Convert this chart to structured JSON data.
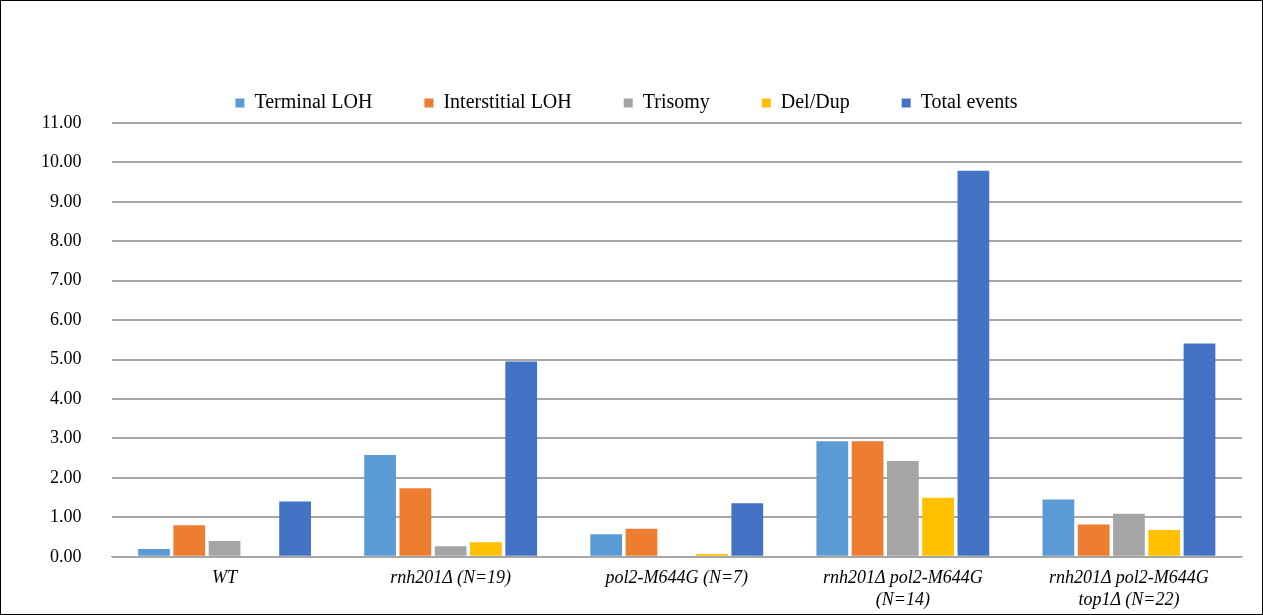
{
  "chart_data": {
    "type": "bar",
    "categories": [
      "WT",
      "rnh201Δ (N=19)",
      "pol2-M644G (N=7)",
      "rnh201Δ pol2-M644G (N=14)",
      "rnh201Δ pol2-M644G top1Δ (N=22)"
    ],
    "series": [
      {
        "name": "Terminal LOH",
        "color": "#5b9bd5",
        "values": [
          0.2,
          2.58,
          0.57,
          2.93,
          1.45
        ]
      },
      {
        "name": "Interstitial LOH",
        "color": "#ed7d31",
        "values": [
          0.8,
          1.74,
          0.71,
          2.93,
          0.82
        ]
      },
      {
        "name": "Trisomy",
        "color": "#a5a5a5",
        "values": [
          0.4,
          0.27,
          0,
          2.43,
          1.09
        ]
      },
      {
        "name": "Del/Dup",
        "color": "#ffc000",
        "values": [
          0,
          0.37,
          0.07,
          1.5,
          0.68
        ]
      },
      {
        "name": "Total events",
        "color": "#4472c4",
        "values": [
          1.4,
          4.95,
          1.36,
          9.79,
          5.41
        ]
      }
    ],
    "ylim": [
      0,
      11
    ],
    "yticks": [
      {
        "value": 0,
        "label": "0.00"
      },
      {
        "value": 1,
        "label": "1.00"
      },
      {
        "value": 2,
        "label": "2.00"
      },
      {
        "value": 3,
        "label": "3.00"
      },
      {
        "value": 4,
        "label": "4.00"
      },
      {
        "value": 5,
        "label": "5.00"
      },
      {
        "value": 6,
        "label": "6.00"
      },
      {
        "value": 7,
        "label": "7.00"
      },
      {
        "value": 8,
        "label": "8.00"
      },
      {
        "value": 9,
        "label": "9.00"
      },
      {
        "value": 10,
        "label": "10.00"
      },
      {
        "value": 11,
        "label": "11.00"
      }
    ],
    "grid": "y",
    "legend": "top"
  }
}
